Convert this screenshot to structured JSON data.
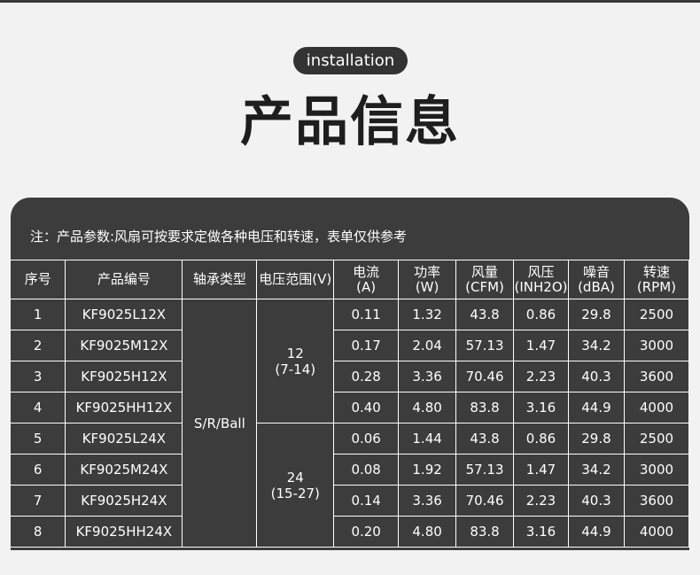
{
  "header": {
    "pill": "installation",
    "title": "产品信息"
  },
  "note": "注：产品参数:风扇可按要求定做各种电压和转速，表单仅供参考",
  "columns": [
    {
      "l1": "序号",
      "l2": ""
    },
    {
      "l1": "产品编号",
      "l2": ""
    },
    {
      "l1": "轴承类型",
      "l2": ""
    },
    {
      "l1": "电压范围(V)",
      "l2": ""
    },
    {
      "l1": "电流",
      "l2": "(A)"
    },
    {
      "l1": "功率",
      "l2": "(W)"
    },
    {
      "l1": "风量",
      "l2": "(CFM)"
    },
    {
      "l1": "风压",
      "l2": "(INH2O)"
    },
    {
      "l1": "噪音",
      "l2": "(dBA)"
    },
    {
      "l1": "转速",
      "l2": "(RPM)"
    }
  ],
  "bearing": "S/R/Ball",
  "voltage_groups": [
    {
      "v": "12",
      "range": "(7-14)"
    },
    {
      "v": "24",
      "range": "(15-27)"
    }
  ],
  "rows": [
    {
      "no": "1",
      "model": "KF9025L12X",
      "a": "0.11",
      "w": "1.32",
      "cfm": "43.8",
      "inh2o": "0.86",
      "dba": "29.8",
      "rpm": "2500"
    },
    {
      "no": "2",
      "model": "KF9025M12X",
      "a": "0.17",
      "w": "2.04",
      "cfm": "57.13",
      "inh2o": "1.47",
      "dba": "34.2",
      "rpm": "3000"
    },
    {
      "no": "3",
      "model": "KF9025H12X",
      "a": "0.28",
      "w": "3.36",
      "cfm": "70.46",
      "inh2o": "2.23",
      "dba": "40.3",
      "rpm": "3600"
    },
    {
      "no": "4",
      "model": "KF9025HH12X",
      "a": "0.40",
      "w": "4.80",
      "cfm": "83.8",
      "inh2o": "3.16",
      "dba": "44.9",
      "rpm": "4000"
    },
    {
      "no": "5",
      "model": "KF9025L24X",
      "a": "0.06",
      "w": "1.44",
      "cfm": "43.8",
      "inh2o": "0.86",
      "dba": "29.8",
      "rpm": "2500"
    },
    {
      "no": "6",
      "model": "KF9025M24X",
      "a": "0.08",
      "w": "1.92",
      "cfm": "57.13",
      "inh2o": "1.47",
      "dba": "34.2",
      "rpm": "3000"
    },
    {
      "no": "7",
      "model": "KF9025H24X",
      "a": "0.14",
      "w": "3.36",
      "cfm": "70.46",
      "inh2o": "2.23",
      "dba": "40.3",
      "rpm": "3600"
    },
    {
      "no": "8",
      "model": "KF9025HH24X",
      "a": "0.20",
      "w": "4.80",
      "cfm": "83.8",
      "inh2o": "3.16",
      "dba": "44.9",
      "rpm": "4000"
    }
  ]
}
